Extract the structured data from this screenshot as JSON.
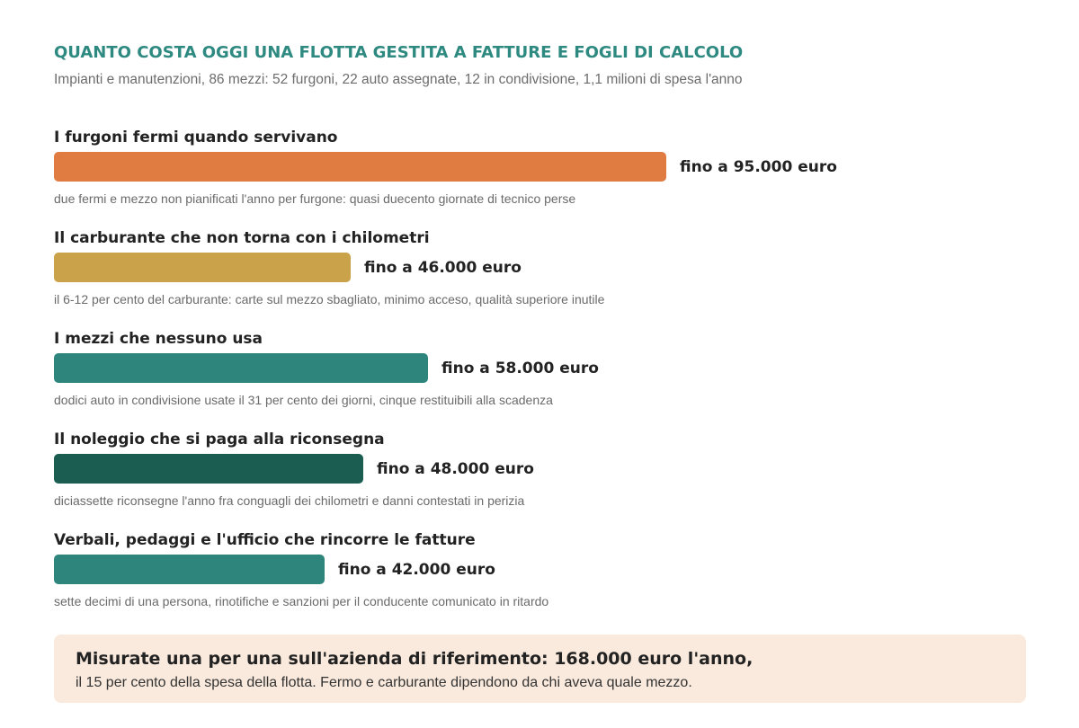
{
  "header": {
    "title": "QUANTO COSTA OGGI UNA FLOTTA GESTITA A FATTURE E FOGLI DI CALCOLO",
    "subtitle": "Impianti e manutenzioni, 86 mezzi: 52 furgoni, 22 auto assegnate, 12 in condivisione, 1,1 milioni di spesa l'anno"
  },
  "chart_data": {
    "type": "bar",
    "orientation": "horizontal",
    "unit": "euro",
    "categories": [
      "I furgoni fermi quando servivano",
      "Il carburante che non torna con i chilometri",
      "I mezzi che nessuno usa",
      "Il noleggio che si paga alla riconsegna",
      "Verbali, pedaggi e l'ufficio che rincorre le fatture"
    ],
    "values": [
      95000,
      46000,
      58000,
      48000,
      42000
    ],
    "value_labels": [
      "fino a 95.000 euro",
      "fino a 46.000 euro",
      "fino a 58.000 euro",
      "fino a 48.000 euro",
      "fino a 42.000 euro"
    ],
    "notes": [
      "due fermi e mezzo non pianificati l'anno per furgone: quasi duecento giornate di tecnico perse",
      "il 6-12 per cento del carburante: carte sul mezzo sbagliato, minimo acceso, qualità superiore inutile",
      "dodici auto in condivisione usate il 31 per cento dei giorni, cinque restituibili alla scadenza",
      "diciassette riconsegne l'anno fra conguagli dei chilometri e danni contestati in perizia",
      "sette decimi di una persona, rinotifiche e sanzioni per il conducente comunicato in ritardo"
    ],
    "colors": [
      "#e07b41",
      "#c9a24a",
      "#2e857c",
      "#1b5e51",
      "#2e857c"
    ],
    "xlim": [
      0,
      95000
    ]
  },
  "callout": {
    "headline": "Misurate una per una sull'azienda di riferimento: 168.000 euro l'anno,",
    "body": "il 15 per cento della spesa della flotta. Fermo e carburante dipendono da chi aveva quale mezzo."
  }
}
